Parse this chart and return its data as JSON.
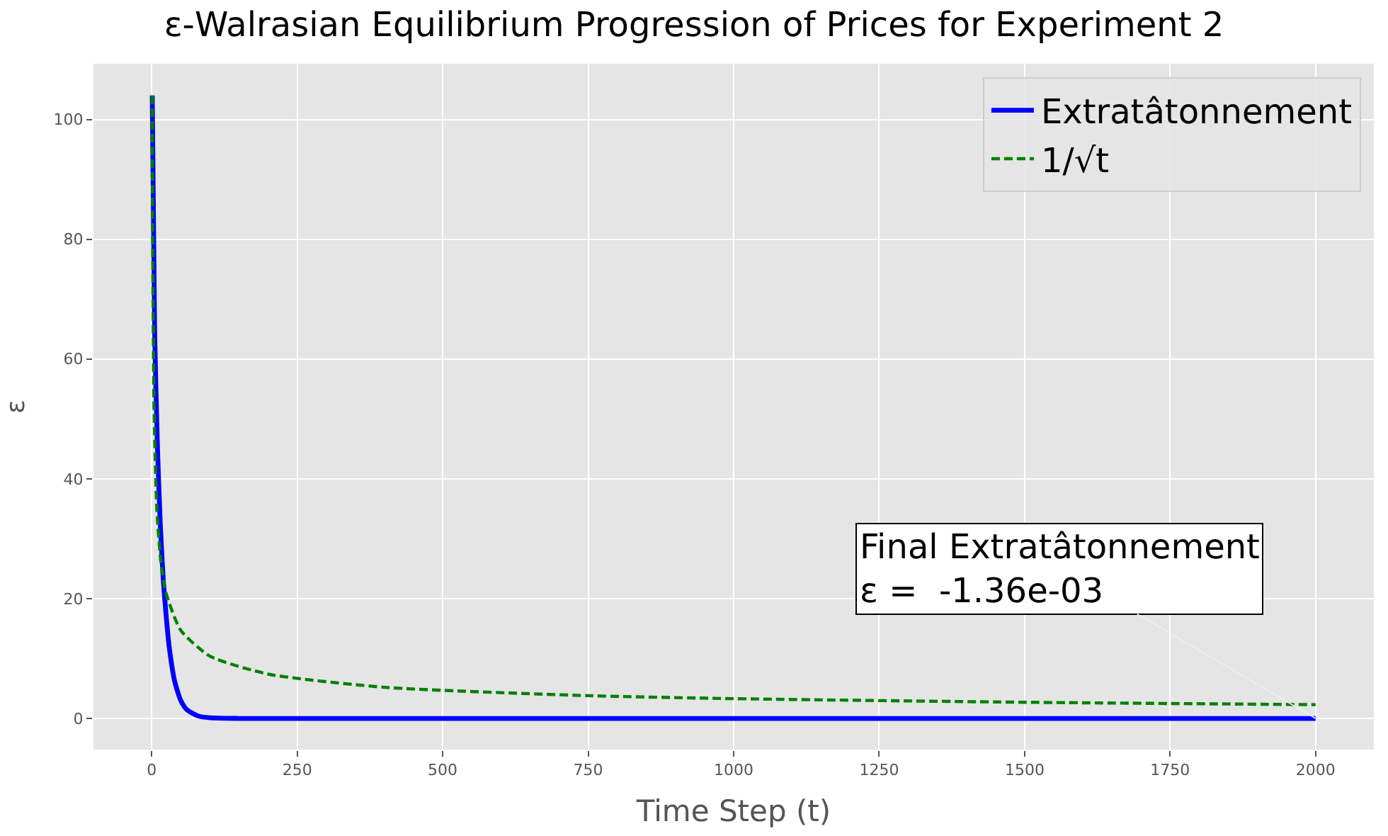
{
  "chart_data": {
    "type": "line",
    "title": "ε-Walrasian Equilibrium Progression of Prices for Experiment 2",
    "xlabel": "Time Step (t)",
    "ylabel": "ε",
    "xlim": [
      -100,
      2100
    ],
    "ylim": [
      -5.2,
      109.3
    ],
    "xticks": [
      0,
      250,
      500,
      750,
      1000,
      1250,
      1500,
      1750,
      2000
    ],
    "yticks": [
      0,
      20,
      40,
      60,
      80,
      100
    ],
    "grid": true,
    "legend": "top right",
    "series": [
      {
        "name": "Extratâtonnement",
        "color": "#0000ff",
        "line_style": "solid",
        "x": [
          1,
          5,
          10,
          15,
          20,
          25,
          30,
          40,
          50,
          60,
          80,
          100,
          150,
          500,
          1000,
          1500,
          2000
        ],
        "values": [
          104,
          65,
          45,
          32,
          23,
          17,
          12,
          6,
          3,
          1.5,
          0.4,
          0.1,
          0,
          0,
          0,
          0,
          0
        ]
      },
      {
        "name": "1/√t",
        "color": "#008000",
        "line_style": "dashed",
        "x": [
          1,
          2,
          4,
          9,
          16,
          25,
          50,
          100,
          200,
          400,
          750,
          1000,
          1500,
          2000
        ],
        "values": [
          104,
          73.5,
          52,
          34.7,
          26,
          20.8,
          14.7,
          10.4,
          7.4,
          5.2,
          3.8,
          3.3,
          2.7,
          2.3
        ]
      }
    ],
    "annotations": [
      {
        "text": "Final Extratâtonnement\nε =  -1.36e-03",
        "x": 2000,
        "y": -0.00136
      }
    ]
  }
}
